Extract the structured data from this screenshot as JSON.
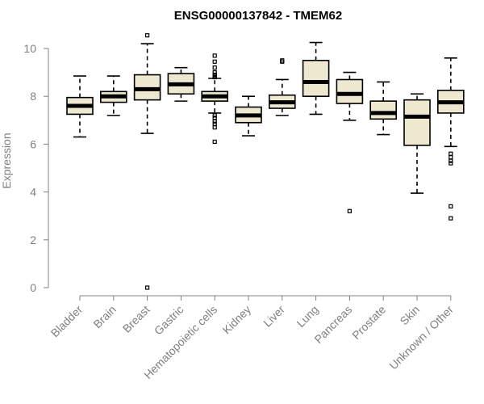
{
  "chart_data": {
    "type": "boxplot",
    "title": "ENSG00000137842 - TMEM62",
    "ylabel": "Expression",
    "xlabel": "",
    "ylim": [
      0,
      10
    ],
    "yticks": [
      0,
      2,
      4,
      6,
      8,
      10
    ],
    "grid": false,
    "legend": "none",
    "box_color": "#efe8d0",
    "categories": [
      "Bladder",
      "Brain",
      "Breast",
      "Gastric",
      "Hematopoietic cells",
      "Kidney",
      "Liver",
      "Lung",
      "Pancreas",
      "Prostate",
      "Skin",
      "Unknown / Other"
    ],
    "boxes": [
      {
        "min": 6.3,
        "q1": 7.25,
        "median": 7.6,
        "q3": 7.95,
        "max": 8.85,
        "outliers": []
      },
      {
        "min": 7.2,
        "q1": 7.75,
        "median": 8.0,
        "q3": 8.2,
        "max": 8.85,
        "outliers": []
      },
      {
        "min": 6.45,
        "q1": 7.85,
        "median": 8.3,
        "q3": 8.9,
        "max": 10.2,
        "outliers": [
          10.55,
          0.0
        ]
      },
      {
        "min": 7.8,
        "q1": 8.1,
        "median": 8.5,
        "q3": 8.95,
        "max": 9.2,
        "outliers": []
      },
      {
        "min": 7.3,
        "q1": 7.8,
        "median": 8.0,
        "q3": 8.2,
        "max": 8.75,
        "outliers": [
          9.7,
          9.45,
          9.2,
          9.0,
          8.9,
          8.85,
          8.8,
          7.2,
          7.1,
          6.95,
          6.85,
          6.7,
          6.1
        ]
      },
      {
        "min": 6.35,
        "q1": 6.9,
        "median": 7.2,
        "q3": 7.55,
        "max": 8.0,
        "outliers": []
      },
      {
        "min": 7.2,
        "q1": 7.5,
        "median": 7.75,
        "q3": 8.05,
        "max": 8.7,
        "outliers": [
          9.5,
          9.45
        ]
      },
      {
        "min": 7.25,
        "q1": 8.0,
        "median": 8.6,
        "q3": 9.5,
        "max": 10.25,
        "outliers": []
      },
      {
        "min": 7.0,
        "q1": 7.7,
        "median": 8.1,
        "q3": 8.7,
        "max": 9.0,
        "outliers": [
          3.2
        ]
      },
      {
        "min": 6.4,
        "q1": 7.05,
        "median": 7.3,
        "q3": 7.8,
        "max": 8.6,
        "outliers": []
      },
      {
        "min": 3.95,
        "q1": 5.95,
        "median": 7.15,
        "q3": 7.85,
        "max": 8.1,
        "outliers": []
      },
      {
        "min": 5.9,
        "q1": 7.3,
        "median": 7.75,
        "q3": 8.25,
        "max": 9.6,
        "outliers": [
          5.6,
          5.45,
          5.3,
          5.2,
          3.4,
          2.9
        ]
      }
    ]
  }
}
